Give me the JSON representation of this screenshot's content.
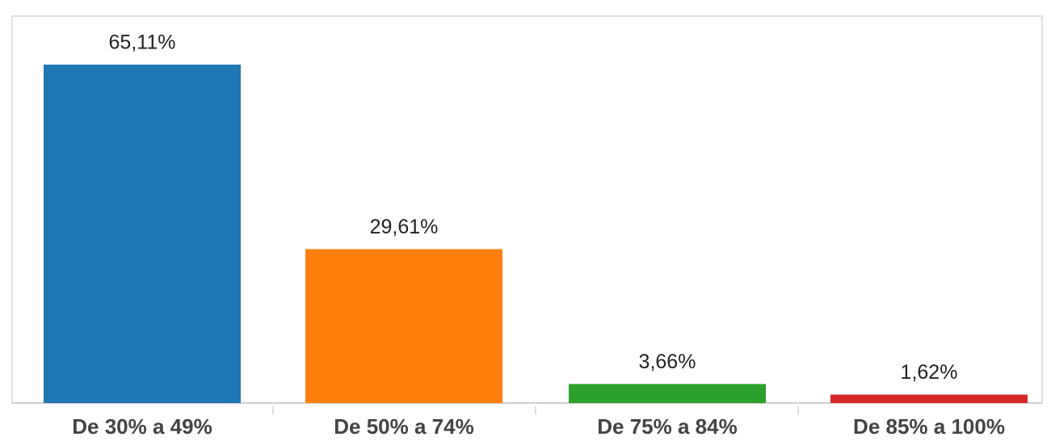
{
  "chart_data": {
    "type": "bar",
    "categories": [
      "De 30% a 49%",
      "De 50% a 74%",
      "De 75% a 84%",
      "De 85% a 100%"
    ],
    "values": [
      65.11,
      29.61,
      3.66,
      1.62
    ],
    "value_labels": [
      "65,11%",
      "29,61%",
      "3,66%",
      "1,62%"
    ],
    "colors": [
      "#1f77b4",
      "#ff7f0e",
      "#2ca02c",
      "#d62728"
    ]
  }
}
